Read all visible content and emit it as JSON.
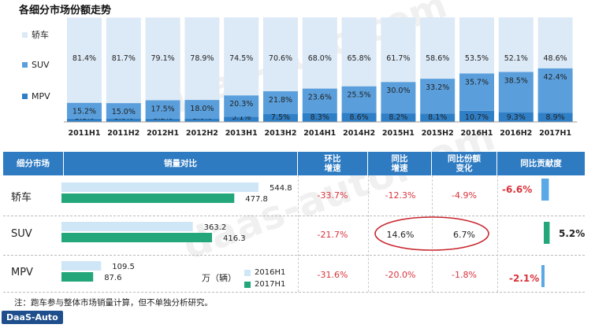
{
  "title": "各细分市场份额走势",
  "legend": [
    {
      "label": "轿车",
      "color": "#dce9f6"
    },
    {
      "label": "SUV",
      "color": "#5a9fdc"
    },
    {
      "label": "MPV",
      "color": "#2f7fc7"
    }
  ],
  "chart_data": [
    {
      "type": "bar",
      "stacked": true,
      "percent": true,
      "title": "各细分市场份额走势",
      "categories": [
        "2011H1",
        "2011H2",
        "2012H1",
        "2012H2",
        "2013H1",
        "2013H2",
        "2014H1",
        "2014H2",
        "2015H1",
        "2015H2",
        "2016H1",
        "2016H2",
        "2017H1"
      ],
      "series": [
        {
          "name": "MPV",
          "color": "#2f7fc7",
          "values": [
            3.1,
            3.0,
            3.2,
            3.0,
            5.1,
            7.5,
            8.3,
            8.6,
            8.2,
            8.1,
            10.7,
            9.3,
            8.9
          ]
        },
        {
          "name": "SUV",
          "color": "#5a9fdc",
          "values": [
            15.2,
            15.0,
            17.5,
            18.0,
            20.3,
            21.8,
            23.6,
            25.5,
            30.0,
            33.2,
            35.7,
            38.5,
            42.4
          ]
        },
        {
          "name": "轿车",
          "color": "#dce9f6",
          "values": [
            81.4,
            81.7,
            79.1,
            78.9,
            74.5,
            70.6,
            68.0,
            65.8,
            61.7,
            58.6,
            53.5,
            52.1,
            48.6
          ]
        }
      ],
      "labels": {
        "MPV": [
          "3.1%",
          "3.0%",
          "3.2%",
          "3.0%",
          "5.1%",
          "7.5%",
          "8.3%",
          "8.6%",
          "8.2%",
          "8.1%",
          "10.7%",
          "9.3%",
          "8.9%"
        ],
        "SUV": [
          "15.2%",
          "15.0%",
          "17.5%",
          "18.0%",
          "20.3%",
          "21.8%",
          "23.6%",
          "25.5%",
          "30.0%",
          "33.2%",
          "35.7%",
          "38.5%",
          "42.4%"
        ],
        "轿车": [
          "81.4%",
          "81.7%",
          "79.1%",
          "78.9%",
          "74.5%",
          "70.6%",
          "68.0%",
          "65.8%",
          "61.7%",
          "58.6%",
          "53.5%",
          "52.1%",
          "48.6%"
        ]
      },
      "ylim": [
        0,
        100
      ]
    },
    {
      "type": "bar",
      "orientation": "horizontal",
      "categories": [
        "轿车",
        "SUV",
        "MPV"
      ],
      "series": [
        {
          "name": "2016H1",
          "color": "#cfe6f7",
          "values": [
            544.8,
            363.2,
            109.5
          ]
        },
        {
          "name": "2017H1",
          "color": "#23a77a",
          "values": [
            477.8,
            416.3,
            87.6
          ]
        }
      ],
      "unit": "万（辆）",
      "xlim": [
        0,
        544.8
      ]
    },
    {
      "type": "bar",
      "orientation": "horizontal",
      "title": "同比贡献度",
      "categories": [
        "轿车",
        "SUV",
        "MPV"
      ],
      "values": [
        -6.6,
        5.2,
        -2.1
      ],
      "labels": [
        "-6.6%",
        "5.2%",
        "-2.1%"
      ],
      "colors": [
        "#5aa9e6",
        "#23a77a",
        "#5aa9e6"
      ]
    }
  ],
  "table": {
    "headers": [
      "细分市场",
      "销量对比",
      "环比\n增速",
      "同比\n增速",
      "同比份额\n变化",
      "同比贡献度"
    ],
    "rows": [
      {
        "segment": "轿车",
        "v2016": "544.8",
        "v2017": "477.8",
        "mom": "-33.7%",
        "yoy": "-12.3%",
        "share": "-4.9%",
        "contrib": "-6.6%"
      },
      {
        "segment": "SUV",
        "v2016": "363.2",
        "v2017": "416.3",
        "mom": "-21.7%",
        "yoy": "14.6%",
        "share": "6.7%",
        "contrib": "5.2%"
      },
      {
        "segment": "MPV",
        "v2016": "109.5",
        "v2017": "87.6",
        "mom": "-31.6%",
        "yoy": "-20.0%",
        "share": "-1.8%",
        "contrib": "-2.1%"
      }
    ]
  },
  "unit_label": "万（辆）",
  "legend2": [
    "2016H1",
    "2017H1"
  ],
  "note": "注：跑车参与整体市场销量计算，但不单独分析研究。",
  "logo": "DaaS-Auto",
  "watermark": "daas-auto.com"
}
